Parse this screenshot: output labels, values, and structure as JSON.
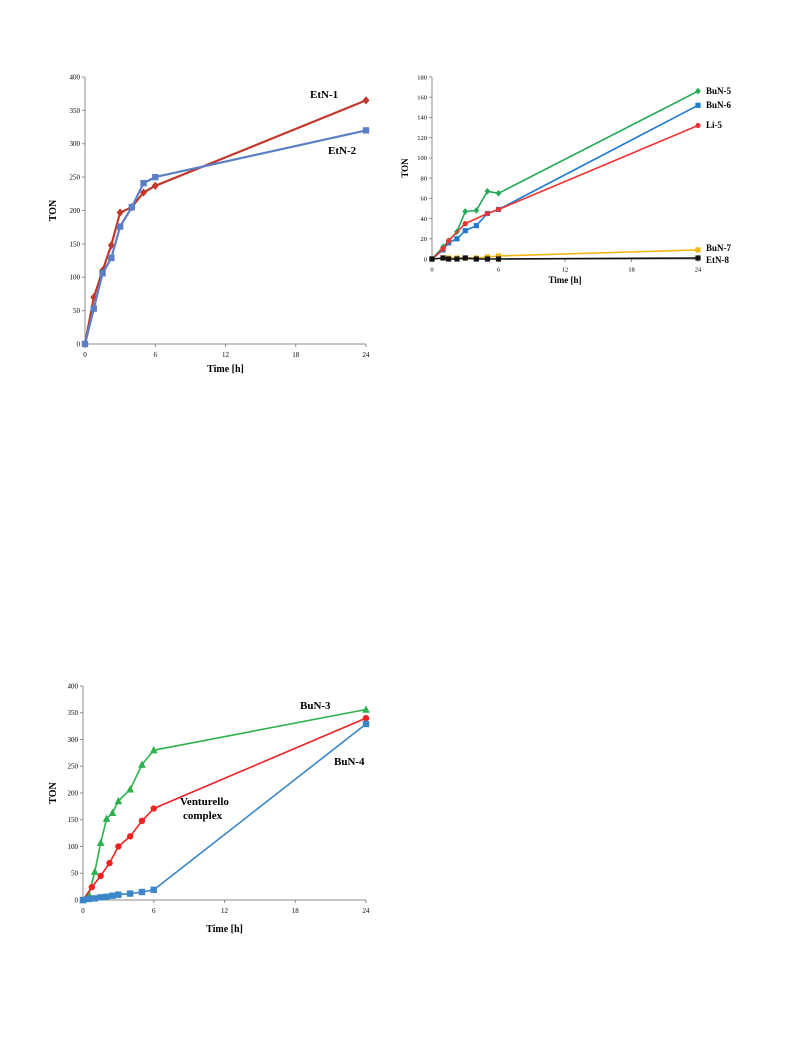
{
  "chart_data": [
    {
      "type": "line",
      "xlabel": "Time [h]",
      "ylabel": "TON",
      "xlim": [
        0,
        24
      ],
      "ylim": [
        0,
        400
      ],
      "xticks": [
        0,
        6,
        12,
        18,
        24
      ],
      "yticks": [
        0,
        50,
        100,
        150,
        200,
        250,
        300,
        350,
        400
      ],
      "grid": false,
      "series": [
        {
          "name": "EtN-1",
          "color": "#c0392b",
          "marker": "diamond",
          "points": [
            [
              0,
              0
            ],
            [
              0.75,
              70
            ],
            [
              1.5,
              110
            ],
            [
              2.25,
              148
            ],
            [
              3,
              197
            ],
            [
              4,
              205
            ],
            [
              5,
              227
            ],
            [
              6,
              237
            ],
            [
              24,
              365
            ]
          ]
        },
        {
          "name": "EtN-2",
          "color": "#5b7fc7",
          "marker": "square",
          "points": [
            [
              0,
              0
            ],
            [
              0.75,
              53
            ],
            [
              1.5,
              106
            ],
            [
              2.25,
              129
            ],
            [
              3,
              176
            ],
            [
              4,
              205
            ],
            [
              5,
              241
            ],
            [
              6,
              250
            ],
            [
              24,
              320
            ]
          ]
        }
      ]
    },
    {
      "type": "line",
      "xlabel": "Time [h]",
      "ylabel": "TON",
      "xlim": [
        0,
        24
      ],
      "ylim": [
        0,
        180
      ],
      "xticks": [
        0,
        6,
        12,
        18,
        24
      ],
      "yticks": [
        0,
        20,
        40,
        60,
        80,
        100,
        120,
        140,
        160,
        180
      ],
      "grid": false,
      "series": [
        {
          "name": "BuN-5",
          "color": "#22aa55",
          "marker": "diamond",
          "points": [
            [
              0,
              0
            ],
            [
              1,
              12
            ],
            [
              1.5,
              18
            ],
            [
              2.25,
              27
            ],
            [
              3,
              47
            ],
            [
              4,
              48
            ],
            [
              5,
              67
            ],
            [
              6,
              65
            ],
            [
              24,
              166
            ]
          ]
        },
        {
          "name": "BuN-6",
          "color": "#1f7ad1",
          "marker": "square",
          "points": [
            [
              0,
              0
            ],
            [
              1,
              9
            ],
            [
              1.5,
              16
            ],
            [
              2.25,
              20
            ],
            [
              3,
              28
            ],
            [
              4,
              33
            ],
            [
              5,
              45
            ],
            [
              6,
              49
            ],
            [
              24,
              152
            ]
          ]
        },
        {
          "name": "Li-5",
          "color": "#ee3333",
          "marker": "circle",
          "points": [
            [
              0,
              0
            ],
            [
              1,
              10
            ],
            [
              1.5,
              18
            ],
            [
              3,
              35
            ],
            [
              5,
              45
            ],
            [
              6,
              49
            ],
            [
              24,
              132
            ]
          ]
        },
        {
          "name": "BuN-7",
          "color": "#f2b711",
          "marker": "square",
          "points": [
            [
              0,
              0
            ],
            [
              1,
              1
            ],
            [
              1.5,
              1
            ],
            [
              2.25,
              1
            ],
            [
              3,
              1
            ],
            [
              4,
              1
            ],
            [
              5,
              2
            ],
            [
              6,
              3
            ],
            [
              24,
              9
            ]
          ]
        },
        {
          "name": "EtN-8",
          "color": "#111111",
          "marker": "square",
          "points": [
            [
              0,
              0
            ],
            [
              1,
              1
            ],
            [
              1.5,
              0
            ],
            [
              2.25,
              0
            ],
            [
              3,
              1
            ],
            [
              4,
              0
            ],
            [
              5,
              0
            ],
            [
              6,
              0
            ],
            [
              24,
              1
            ]
          ]
        }
      ]
    },
    {
      "type": "line",
      "xlabel": "Time [h]",
      "ylabel": "TON",
      "xlim": [
        0,
        24
      ],
      "ylim": [
        0,
        400
      ],
      "xticks": [
        0,
        6,
        12,
        18,
        24
      ],
      "yticks": [
        0,
        50,
        100,
        150,
        200,
        250,
        300,
        350,
        400
      ],
      "grid": false,
      "series": [
        {
          "name": "BuN-3",
          "color": "#2bb24c",
          "marker": "triangle",
          "points": [
            [
              0,
              0
            ],
            [
              0.5,
              10
            ],
            [
              1,
              53
            ],
            [
              1.5,
              107
            ],
            [
              2,
              152
            ],
            [
              2.5,
              163
            ],
            [
              3,
              185
            ],
            [
              4,
              207
            ],
            [
              5,
              253
            ],
            [
              6,
              280
            ],
            [
              24,
              356
            ]
          ]
        },
        {
          "name": "Venturello complex",
          "color": "#ee2222",
          "marker": "circle",
          "points": [
            [
              0,
              0
            ],
            [
              0.75,
              24
            ],
            [
              1.5,
              45
            ],
            [
              2.25,
              69
            ],
            [
              3,
              100
            ],
            [
              4,
              119
            ],
            [
              5,
              148
            ],
            [
              6,
              171
            ],
            [
              24,
              340
            ]
          ]
        },
        {
          "name": "BuN-4",
          "color": "#3a86c8",
          "marker": "square",
          "points": [
            [
              0,
              0
            ],
            [
              0.5,
              2
            ],
            [
              1,
              3
            ],
            [
              1.5,
              5
            ],
            [
              2,
              6
            ],
            [
              2.5,
              8
            ],
            [
              3,
              10
            ],
            [
              4,
              12
            ],
            [
              5,
              15
            ],
            [
              6,
              19
            ],
            [
              24,
              329
            ]
          ]
        }
      ]
    }
  ],
  "labels": {
    "chart1": {
      "s0": "EtN-1",
      "s1": "EtN-2"
    },
    "chart2": {
      "s0": "BuN-5",
      "s1": "BuN-6",
      "s2": "Li-5",
      "s3": "BuN-7",
      "s4": "EtN-8"
    },
    "chart3": {
      "s0": "BuN-3",
      "s1_line1": "Venturello",
      "s1_line2": "complex",
      "s2": "BuN-4"
    }
  }
}
